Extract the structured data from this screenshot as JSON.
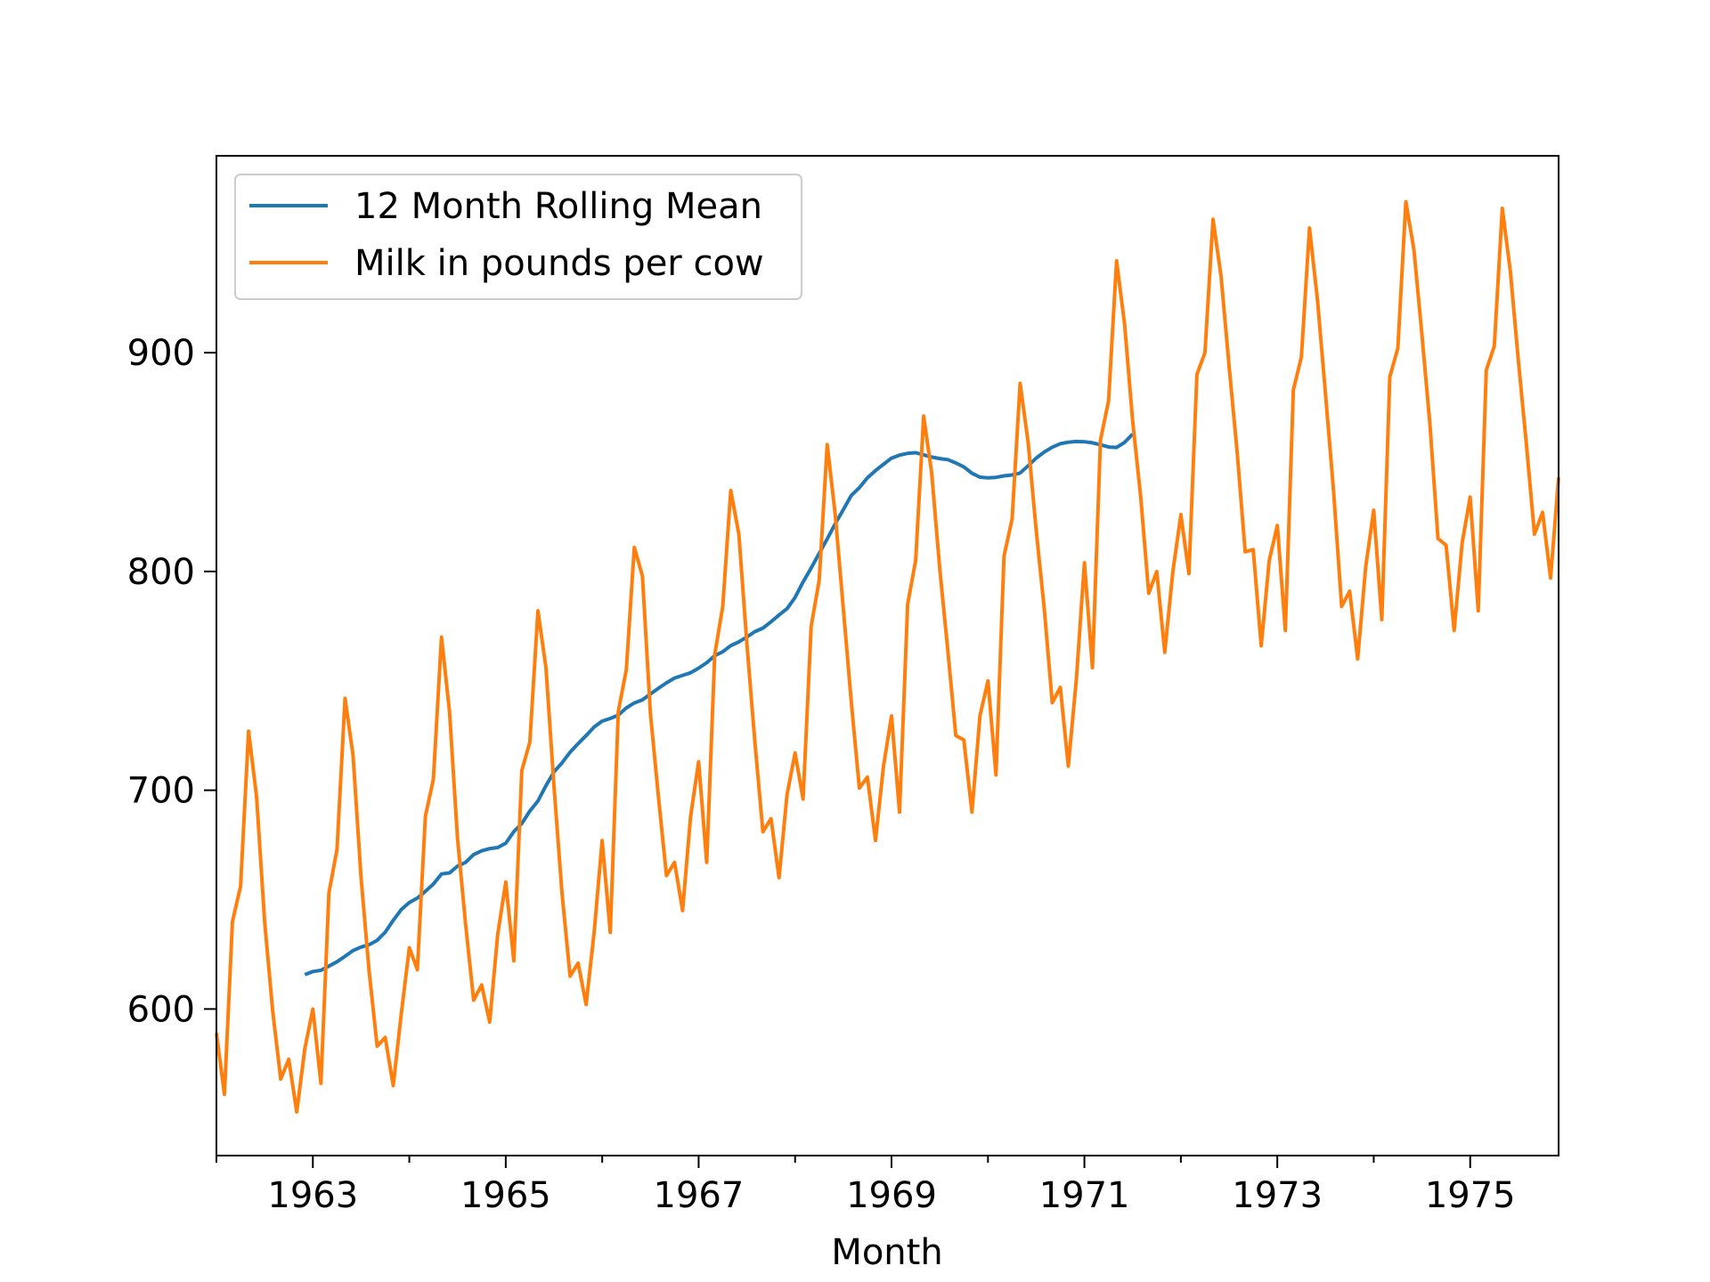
{
  "chart_data": {
    "type": "line",
    "title": "",
    "xlabel": "Month",
    "ylabel": "",
    "x_range": [
      "1962-01",
      "1975-12"
    ],
    "ylim": [
      533,
      990
    ],
    "x_ticks": [
      "1963",
      "1965",
      "1967",
      "1969",
      "1971",
      "1973",
      "1975"
    ],
    "y_ticks": [
      600,
      700,
      800,
      900
    ],
    "grid": false,
    "legend_position": "top-left",
    "series": [
      {
        "name": "12 Month Rolling Mean",
        "color": "#1f77b4",
        "start": "1962-12",
        "values": [
          615.7,
          617.1,
          617.7,
          619.6,
          621.6,
          624.1,
          626.7,
          628.3,
          629.4,
          631.4,
          635.1,
          640.5,
          645.5,
          648.7,
          650.7,
          653.8,
          657.1,
          661.7,
          662.2,
          665.3,
          667.0,
          670.6,
          672.3,
          673.3,
          673.8,
          675.8,
          681.1,
          684.8,
          690.5,
          695.1,
          702.1,
          708.4,
          712.5,
          717.4,
          721.3,
          725.0,
          728.9,
          731.6,
          732.8,
          734.3,
          737.6,
          739.9,
          741.3,
          744.0,
          746.6,
          749.1,
          751.3,
          752.5,
          753.7,
          755.8,
          758.3,
          761.5,
          763.3,
          766.1,
          767.8,
          770.1,
          772.5,
          774.1,
          777.0,
          780.1,
          783.0,
          788.1,
          795.2,
          801.6,
          808.3,
          814.9,
          821.8,
          828.3,
          834.8,
          838.3,
          842.8,
          846.1,
          849.0,
          851.8,
          853.2,
          854.0,
          854.3,
          853.3,
          852.3,
          851.6,
          851.1,
          849.6,
          847.8,
          844.9,
          843.1,
          842.8,
          843.0,
          843.7,
          844.1,
          845.0,
          848.3,
          851.8,
          854.6,
          856.8,
          858.4,
          859.1,
          859.4,
          859.3,
          858.8,
          857.9,
          856.9,
          856.7,
          859.0,
          862.8
        ]
      },
      {
        "name": "Milk in pounds per cow",
        "color": "#ff7f0e",
        "start": "1962-01",
        "values": [
          589,
          561,
          640,
          656,
          727,
          697,
          640,
          599,
          568,
          577,
          553,
          582,
          600,
          566,
          653,
          673,
          742,
          716,
          660,
          617,
          583,
          587,
          565,
          598,
          628,
          618,
          688,
          705,
          770,
          736,
          678,
          639,
          604,
          611,
          594,
          634,
          658,
          622,
          709,
          722,
          782,
          756,
          702,
          653,
          615,
          621,
          602,
          635,
          677,
          635,
          736,
          755,
          811,
          798,
          735,
          697,
          661,
          667,
          645,
          688,
          713,
          667,
          762,
          784,
          837,
          817,
          767,
          722,
          681,
          687,
          660,
          698,
          717,
          696,
          775,
          796,
          858,
          826,
          783,
          740,
          701,
          706,
          677,
          711,
          734,
          690,
          785,
          805,
          871,
          845,
          801,
          764,
          725,
          723,
          690,
          734,
          750,
          707,
          807,
          824,
          886,
          859,
          819,
          783,
          740,
          747,
          711,
          751,
          804,
          756,
          860,
          878,
          942,
          913,
          869,
          834,
          790,
          800,
          763,
          800,
          826,
          799,
          890,
          900,
          961,
          935,
          894,
          855,
          809,
          810,
          766,
          805,
          821,
          773,
          883,
          898,
          957,
          924,
          881,
          837,
          784,
          791,
          760,
          802,
          828,
          778,
          889,
          902,
          969,
          947,
          908,
          867,
          815,
          812,
          773,
          813,
          834,
          782,
          892,
          903,
          966,
          937,
          896,
          858,
          817,
          827,
          797,
          843
        ]
      }
    ]
  }
}
